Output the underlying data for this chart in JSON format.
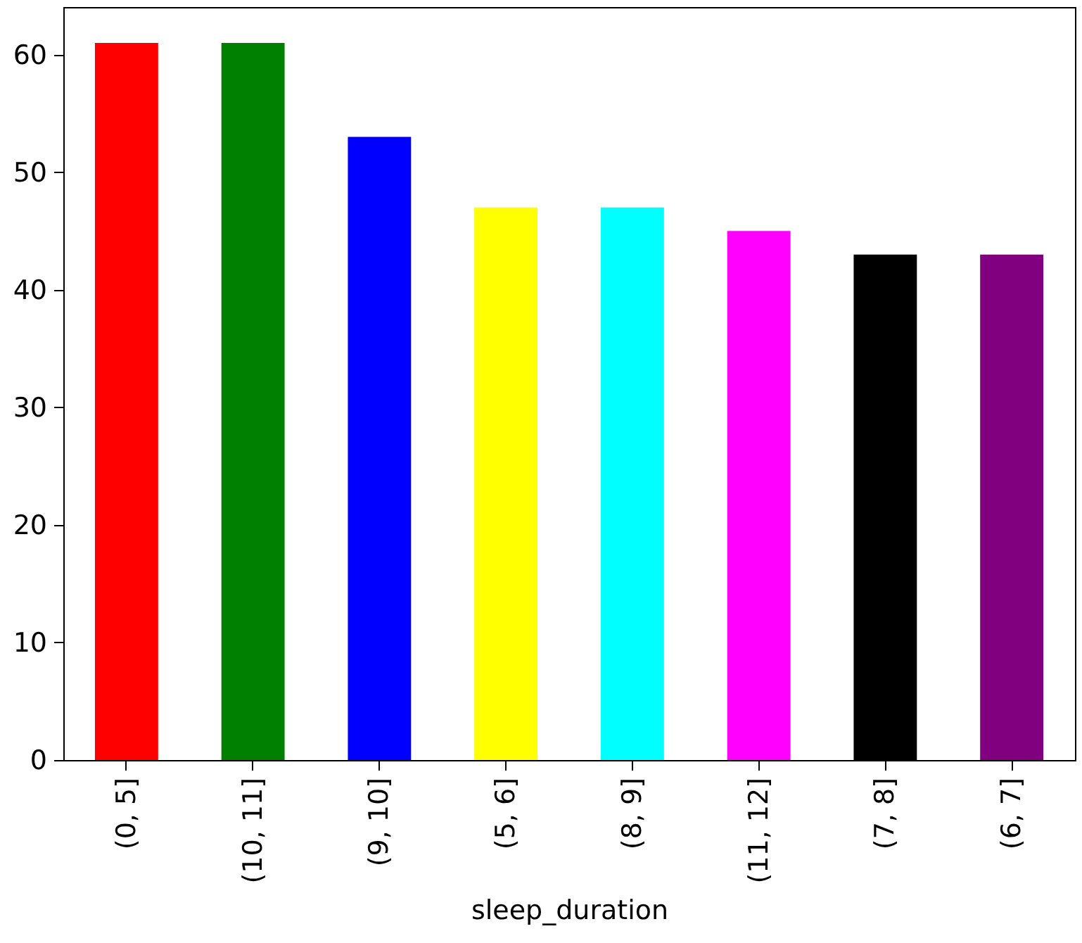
{
  "chart_data": {
    "type": "bar",
    "xlabel": "sleep_duration",
    "categories": [
      "(0, 5]",
      "(10, 11]",
      "(9, 10]",
      "(5, 6]",
      "(8, 9]",
      "(11, 12]",
      "(7, 8]",
      "(6, 7]"
    ],
    "values": [
      61,
      61,
      53,
      47,
      47,
      45,
      43,
      43
    ],
    "colors": [
      "#ff0000",
      "#008000",
      "#0000ff",
      "#ffff00",
      "#00ffff",
      "#ff00ff",
      "#000000",
      "#800080"
    ],
    "ylim": [
      0,
      64.05
    ],
    "yticks": [
      0,
      10,
      20,
      30,
      40,
      50,
      60
    ],
    "grid": false
  }
}
